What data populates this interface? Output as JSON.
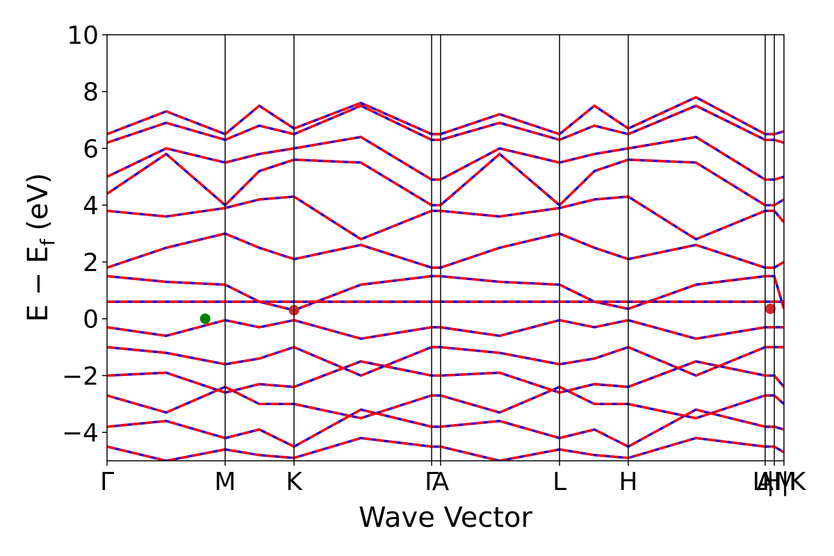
{
  "chart_data": {
    "type": "band",
    "xlabel": "Wave Vector",
    "ylabel": {
      "main": "E − E",
      "sub": "f",
      "unit": "(eV)"
    },
    "xlim": [
      0,
      4.0
    ],
    "ylim": [
      -5,
      10
    ],
    "yticks": [
      {
        "value": -4,
        "label": "−4"
      },
      {
        "value": -2,
        "label": "−2"
      },
      0,
      2,
      4,
      6,
      8,
      10
    ],
    "xticks": [
      {
        "value": 0,
        "label": "Γ"
      },
      {
        "value": 0.698,
        "label": "M"
      },
      {
        "value": 1.105,
        "label": "K"
      },
      {
        "value": 1.918,
        "label": "Γ"
      },
      {
        "value": 1.971,
        "label": "A"
      },
      {
        "value": 2.674,
        "label": "L"
      },
      {
        "value": 3.08,
        "label": "H"
      },
      {
        "value": 3.889,
        "label": "A"
      },
      {
        "value": 3.943,
        "label": "L|M"
      },
      {
        "value": 4.0,
        "label": "H|K"
      }
    ],
    "x": [
      0,
      0.35,
      0.698,
      0.9,
      1.105,
      1.5,
      1.918,
      1.971,
      2.32,
      2.674,
      2.88,
      3.08,
      3.48,
      3.889,
      3.943,
      4.0
    ],
    "series": [
      {
        "color": "#0000ff",
        "dashed": false,
        "values": [
          [
            0.6,
            0.6,
            0.6,
            0.6,
            0.6,
            0.6,
            0.6,
            0.6,
            0.6,
            0.6,
            0.6,
            0.6,
            0.6,
            0.6,
            0.6,
            0.6
          ],
          [
            -0.3,
            -0.6,
            -0.05,
            -0.3,
            -0.05,
            -0.7,
            -0.3,
            -0.3,
            -0.6,
            -0.05,
            -0.3,
            -0.05,
            -0.7,
            -0.3,
            -0.3,
            -0.3
          ],
          [
            1.5,
            1.3,
            1.2,
            0.6,
            0.3,
            1.2,
            1.5,
            1.5,
            1.3,
            1.2,
            0.6,
            0.35,
            1.2,
            1.5,
            1.5,
            0.35
          ],
          [
            1.8,
            2.5,
            3.0,
            2.5,
            2.1,
            2.6,
            1.8,
            1.8,
            2.5,
            3.0,
            2.5,
            2.1,
            2.6,
            1.8,
            1.8,
            2.0
          ],
          [
            3.8,
            3.6,
            3.9,
            4.2,
            4.3,
            2.8,
            3.8,
            3.8,
            3.6,
            3.9,
            4.2,
            4.3,
            2.8,
            3.8,
            3.8,
            3.4
          ],
          [
            4.4,
            5.8,
            4.0,
            5.2,
            5.6,
            5.5,
            4.0,
            4.0,
            5.8,
            4.0,
            5.2,
            5.6,
            5.5,
            4.0,
            4.0,
            4.2
          ],
          [
            5.0,
            6.0,
            5.5,
            5.8,
            6.0,
            6.4,
            4.9,
            4.9,
            6.0,
            5.5,
            5.8,
            6.0,
            6.4,
            4.9,
            4.9,
            5.0
          ],
          [
            6.2,
            6.9,
            6.3,
            6.8,
            6.5,
            7.5,
            6.3,
            6.3,
            6.9,
            6.3,
            6.8,
            6.5,
            7.5,
            6.3,
            6.3,
            6.2
          ],
          [
            6.5,
            7.3,
            6.5,
            7.5,
            6.7,
            7.6,
            6.5,
            6.5,
            7.2,
            6.5,
            7.5,
            6.7,
            7.8,
            6.5,
            6.5,
            6.6
          ],
          [
            -1.0,
            -1.2,
            -1.6,
            -1.4,
            -1.0,
            -2.0,
            -1.0,
            -1.0,
            -1.2,
            -1.6,
            -1.4,
            -1.0,
            -2.0,
            -1.0,
            -1.0,
            -1.0
          ],
          [
            -2.0,
            -1.9,
            -2.6,
            -2.3,
            -2.4,
            -1.5,
            -2.0,
            -2.0,
            -1.9,
            -2.6,
            -2.3,
            -2.4,
            -1.5,
            -2.0,
            -2.0,
            -2.4
          ],
          [
            -2.7,
            -3.3,
            -2.4,
            -3.0,
            -3.0,
            -3.5,
            -2.7,
            -2.7,
            -3.3,
            -2.4,
            -3.0,
            -3.0,
            -3.5,
            -2.7,
            -2.7,
            -3.0
          ],
          [
            -3.8,
            -3.6,
            -4.2,
            -3.9,
            -4.5,
            -3.2,
            -3.8,
            -3.8,
            -3.6,
            -4.2,
            -3.9,
            -4.5,
            -3.2,
            -3.8,
            -3.8,
            -3.9
          ],
          [
            -4.5,
            -5.0,
            -4.6,
            -4.8,
            -4.9,
            -4.2,
            -4.5,
            -4.5,
            -5.0,
            -4.6,
            -4.8,
            -4.9,
            -4.2,
            -4.5,
            -4.5,
            -4.7
          ]
        ]
      },
      {
        "color": "#ff0000",
        "dashed": true,
        "values": [
          [
            0.6,
            0.6,
            0.6,
            0.6,
            0.6,
            0.6,
            0.6,
            0.6,
            0.6,
            0.6,
            0.6,
            0.6,
            0.6,
            0.6,
            0.6,
            0.6
          ],
          [
            -0.3,
            -0.6,
            -0.05,
            -0.3,
            -0.05,
            -0.7,
            -0.3,
            -0.3,
            -0.6,
            -0.05,
            -0.3,
            -0.05,
            -0.7,
            -0.3,
            -0.3,
            -0.3
          ],
          [
            1.5,
            1.3,
            1.2,
            0.6,
            0.3,
            1.2,
            1.5,
            1.5,
            1.3,
            1.2,
            0.6,
            0.35,
            1.2,
            1.5,
            1.5,
            0.35
          ],
          [
            1.8,
            2.5,
            3.0,
            2.5,
            2.1,
            2.6,
            1.8,
            1.8,
            2.5,
            3.0,
            2.5,
            2.1,
            2.6,
            1.8,
            1.8,
            2.0
          ],
          [
            3.8,
            3.6,
            3.9,
            4.2,
            4.3,
            2.8,
            3.8,
            3.8,
            3.6,
            3.9,
            4.2,
            4.3,
            2.8,
            3.8,
            3.8,
            3.4
          ],
          [
            4.4,
            5.8,
            4.0,
            5.2,
            5.6,
            5.5,
            4.0,
            4.0,
            5.8,
            4.0,
            5.2,
            5.6,
            5.5,
            4.0,
            4.0,
            4.2
          ],
          [
            5.0,
            6.0,
            5.5,
            5.8,
            6.0,
            6.4,
            4.9,
            4.9,
            6.0,
            5.5,
            5.8,
            6.0,
            6.4,
            4.9,
            4.9,
            5.0
          ],
          [
            6.2,
            6.9,
            6.3,
            6.8,
            6.5,
            7.5,
            6.3,
            6.3,
            6.9,
            6.3,
            6.8,
            6.5,
            7.5,
            6.3,
            6.3,
            6.2
          ],
          [
            6.5,
            7.3,
            6.5,
            7.5,
            6.7,
            7.6,
            6.5,
            6.5,
            7.2,
            6.5,
            7.5,
            6.7,
            7.8,
            6.5,
            6.5,
            6.6
          ],
          [
            -1.0,
            -1.2,
            -1.6,
            -1.4,
            -1.0,
            -2.0,
            -1.0,
            -1.0,
            -1.2,
            -1.6,
            -1.4,
            -1.0,
            -2.0,
            -1.0,
            -1.0,
            -1.0
          ],
          [
            -2.0,
            -1.9,
            -2.6,
            -2.3,
            -2.4,
            -1.5,
            -2.0,
            -2.0,
            -1.9,
            -2.6,
            -2.3,
            -2.4,
            -1.5,
            -2.0,
            -2.0,
            -2.4
          ],
          [
            -2.7,
            -3.3,
            -2.4,
            -3.0,
            -3.0,
            -3.5,
            -2.7,
            -2.7,
            -3.3,
            -2.4,
            -3.0,
            -3.0,
            -3.5,
            -2.7,
            -2.7,
            -3.0
          ],
          [
            -3.8,
            -3.6,
            -4.2,
            -3.9,
            -4.5,
            -3.2,
            -3.8,
            -3.8,
            -3.6,
            -4.2,
            -3.9,
            -4.5,
            -3.2,
            -3.8,
            -3.8,
            -3.9
          ],
          [
            -4.5,
            -5.0,
            -4.6,
            -4.8,
            -4.9,
            -4.2,
            -4.5,
            -4.5,
            -5.0,
            -4.6,
            -4.8,
            -4.9,
            -4.2,
            -4.5,
            -4.5,
            -4.7
          ]
        ]
      }
    ],
    "points": [
      {
        "x": 0.58,
        "y": 0,
        "color": "#008000"
      },
      {
        "x": 1.105,
        "y": 0.3,
        "color": "#d62728"
      },
      {
        "x": 3.92,
        "y": 0.35,
        "color": "#d62728"
      }
    ]
  }
}
